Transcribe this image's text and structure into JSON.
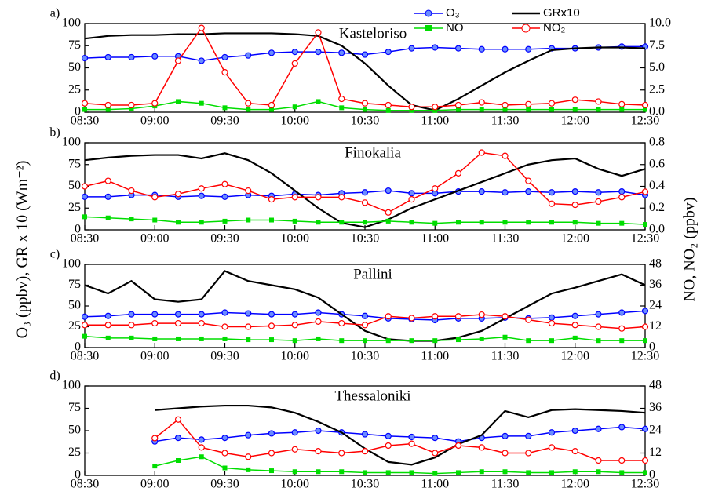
{
  "chart_data": [
    {
      "type": "line",
      "title": "Kasteloriso",
      "panel_label": "a)",
      "ylabel": "O₃ (ppbv), GR x 10 (Wm⁻²)",
      "y2label": "NO, NO₂ (ppbv)",
      "legend": "upper right",
      "x": [
        "08:30",
        "08:40",
        "08:50",
        "09:00",
        "09:10",
        "09:20",
        "09:30",
        "09:40",
        "09:50",
        "10:00",
        "10:10",
        "10:20",
        "10:30",
        "10:40",
        "10:50",
        "11:00",
        "11:10",
        "11:20",
        "11:30",
        "11:40",
        "11:50",
        "12:00",
        "12:10",
        "12:20",
        "12:30"
      ],
      "xlim": [
        "08:30",
        "12:30"
      ],
      "xticks": [
        "08:30",
        "09:00",
        "09:30",
        "10:00",
        "10:30",
        "11:00",
        "11:30",
        "12:00",
        "12:30"
      ],
      "ylim": [
        0,
        100
      ],
      "yticks": [
        0,
        25,
        50,
        75,
        100
      ],
      "y2lim": [
        0,
        10
      ],
      "y2ticks": [
        {
          "value": 0,
          "label": "0.0"
        },
        2.5,
        {
          "value": 5,
          "label": "5.0"
        },
        7.5,
        {
          "value": 10,
          "label": "10.0"
        }
      ],
      "series": [
        {
          "name": "O₃",
          "color": "#0000ff",
          "marker": "circle",
          "axis": "y",
          "values": [
            61,
            62,
            62,
            63,
            63,
            58,
            62,
            64,
            67,
            68,
            68,
            67,
            65,
            68,
            72,
            73,
            72,
            71,
            71,
            71,
            72,
            72,
            73,
            74,
            74
          ]
        },
        {
          "name": "GRx10",
          "color": "#000000",
          "marker": "none",
          "axis": "y",
          "values": [
            83,
            86,
            87,
            87,
            88,
            88,
            89,
            89,
            89,
            88,
            86,
            75,
            55,
            30,
            8,
            2,
            15,
            30,
            45,
            58,
            70,
            72,
            73,
            73,
            72
          ]
        },
        {
          "name": "NO",
          "color": "#00dd00",
          "marker": "square",
          "axis": "y2",
          "values": [
            0.3,
            0.3,
            0.4,
            0.7,
            1.2,
            1.0,
            0.5,
            0.3,
            0.3,
            0.6,
            1.2,
            0.5,
            0.3,
            0.2,
            0.2,
            0.2,
            0.3,
            0.3,
            0.3,
            0.3,
            0.3,
            0.3,
            0.3,
            0.3,
            0.3
          ]
        },
        {
          "name": "NO₂",
          "color": "#ff0000",
          "marker": "open-circle",
          "axis": "y2",
          "values": [
            1.0,
            0.8,
            0.8,
            1.0,
            5.8,
            9.5,
            4.5,
            1.0,
            0.8,
            5.5,
            9.0,
            1.5,
            1.0,
            0.8,
            0.6,
            0.6,
            0.8,
            1.1,
            0.8,
            0.9,
            1.0,
            1.4,
            1.2,
            0.9,
            0.8
          ]
        }
      ]
    },
    {
      "type": "line",
      "title": "Finokalia",
      "panel_label": "b)",
      "x": [
        "08:30",
        "08:40",
        "08:50",
        "09:00",
        "09:10",
        "09:20",
        "09:30",
        "09:40",
        "09:50",
        "10:00",
        "10:10",
        "10:20",
        "10:30",
        "10:40",
        "10:50",
        "11:00",
        "11:10",
        "11:20",
        "11:30",
        "11:40",
        "11:50",
        "12:00",
        "12:10",
        "12:20",
        "12:30"
      ],
      "xlim": [
        "08:30",
        "12:30"
      ],
      "xticks": [
        "08:30",
        "09:00",
        "09:30",
        "10:00",
        "10:30",
        "11:00",
        "11:30",
        "12:00",
        "12:30"
      ],
      "ylim": [
        0,
        100
      ],
      "yticks": [
        0,
        25,
        50,
        75,
        100
      ],
      "y2lim": [
        0,
        0.8
      ],
      "y2ticks": [
        {
          "value": 0,
          "label": "0.0"
        },
        0.2,
        0.4,
        0.6,
        0.8
      ],
      "series": [
        {
          "color": "#0000ff",
          "marker": "circle",
          "axis": "y",
          "values": [
            38,
            38,
            40,
            40,
            38,
            39,
            38,
            40,
            39,
            41,
            40,
            42,
            43,
            45,
            42,
            42,
            44,
            44,
            43,
            44,
            43,
            44,
            43,
            44,
            40
          ]
        },
        {
          "color": "#000000",
          "marker": "none",
          "axis": "y",
          "values": [
            80,
            83,
            85,
            86,
            86,
            82,
            88,
            80,
            65,
            45,
            25,
            8,
            3,
            12,
            25,
            35,
            45,
            55,
            65,
            75,
            80,
            82,
            70,
            62,
            70
          ]
        },
        {
          "color": "#00dd00",
          "marker": "square",
          "axis": "y2",
          "values": [
            0.12,
            0.11,
            0.1,
            0.09,
            0.07,
            0.07,
            0.08,
            0.09,
            0.09,
            0.08,
            0.07,
            0.07,
            0.07,
            0.08,
            0.07,
            0.06,
            0.07,
            0.07,
            0.07,
            0.07,
            0.07,
            0.07,
            0.06,
            0.06,
            0.05
          ]
        },
        {
          "color": "#ff0000",
          "marker": "open-circle",
          "axis": "y2",
          "values": [
            0.4,
            0.45,
            0.36,
            0.3,
            0.33,
            0.38,
            0.42,
            0.36,
            0.28,
            0.3,
            0.3,
            0.3,
            0.25,
            0.16,
            0.28,
            0.38,
            0.52,
            0.71,
            0.68,
            0.45,
            0.24,
            0.23,
            0.26,
            0.3,
            0.35
          ]
        }
      ]
    },
    {
      "type": "line",
      "title": "Pallini",
      "panel_label": "c)",
      "x": [
        "08:30",
        "08:40",
        "08:50",
        "09:00",
        "09:10",
        "09:20",
        "09:30",
        "09:40",
        "09:50",
        "10:00",
        "10:10",
        "10:20",
        "10:30",
        "10:40",
        "10:50",
        "11:00",
        "11:10",
        "11:20",
        "11:30",
        "11:40",
        "11:50",
        "12:00",
        "12:10",
        "12:20",
        "12:30"
      ],
      "xlim": [
        "08:30",
        "12:30"
      ],
      "xticks": [
        "08:30",
        "09:00",
        "09:30",
        "10:00",
        "10:30",
        "11:00",
        "11:30",
        "12:00",
        "12:30"
      ],
      "ylim": [
        0,
        100
      ],
      "yticks": [
        0,
        25,
        50,
        75,
        100
      ],
      "y2lim": [
        0,
        48
      ],
      "y2ticks": [
        0,
        12,
        24,
        36,
        48
      ],
      "series": [
        {
          "color": "#0000ff",
          "marker": "circle",
          "axis": "y",
          "values": [
            37,
            38,
            40,
            40,
            40,
            40,
            42,
            41,
            40,
            40,
            42,
            40,
            38,
            35,
            34,
            33,
            35,
            35,
            36,
            35,
            36,
            38,
            40,
            42,
            44
          ]
        },
        {
          "color": "#000000",
          "marker": "none",
          "axis": "y",
          "values": [
            75,
            65,
            80,
            58,
            55,
            58,
            92,
            80,
            75,
            70,
            60,
            40,
            20,
            10,
            8,
            8,
            12,
            20,
            35,
            50,
            65,
            72,
            80,
            88,
            75
          ]
        },
        {
          "color": "#00dd00",
          "marker": "square",
          "axis": "y2",
          "values": [
            6.5,
            5.5,
            5.5,
            5,
            5,
            5,
            5,
            4.5,
            4.5,
            4,
            5,
            4,
            4,
            4,
            4,
            4,
            4.5,
            5,
            6,
            4,
            4,
            5.5,
            4,
            4,
            4
          ]
        },
        {
          "color": "#ff0000",
          "marker": "open-circle",
          "axis": "y2",
          "values": [
            13,
            13,
            13,
            14,
            14,
            14,
            12,
            12,
            12.5,
            13,
            15,
            14,
            13,
            18,
            17,
            18,
            18,
            19,
            18,
            16,
            14,
            13,
            12,
            11,
            12
          ]
        }
      ]
    },
    {
      "type": "line",
      "title": "Thessaloniki",
      "panel_label": "d)",
      "x": [
        "08:30",
        "08:40",
        "08:50",
        "09:00",
        "09:10",
        "09:20",
        "09:30",
        "09:40",
        "09:50",
        "10:00",
        "10:10",
        "10:20",
        "10:30",
        "10:40",
        "10:50",
        "11:00",
        "11:10",
        "11:20",
        "11:30",
        "11:40",
        "11:50",
        "12:00",
        "12:10",
        "12:20",
        "12:30"
      ],
      "xlim": [
        "08:30",
        "12:30"
      ],
      "xticks": [
        "08:30",
        "09:00",
        "09:30",
        "10:00",
        "10:30",
        "11:00",
        "11:30",
        "12:00",
        "12:30"
      ],
      "ylim": [
        0,
        100
      ],
      "yticks": [
        0,
        25,
        50,
        75,
        100
      ],
      "y2lim": [
        0,
        48
      ],
      "y2ticks": [
        0,
        12,
        24,
        36,
        48
      ],
      "series": [
        {
          "color": "#0000ff",
          "marker": "circle",
          "axis": "y",
          "values": [
            null,
            null,
            null,
            38,
            42,
            40,
            42,
            45,
            47,
            48,
            50,
            48,
            46,
            44,
            43,
            42,
            38,
            42,
            44,
            44,
            48,
            50,
            52,
            54,
            52
          ]
        },
        {
          "color": "#000000",
          "marker": "none",
          "axis": "y",
          "values": [
            null,
            null,
            null,
            73,
            75,
            77,
            78,
            78,
            76,
            70,
            60,
            48,
            30,
            15,
            12,
            20,
            35,
            45,
            72,
            65,
            73,
            74,
            73,
            72,
            70
          ]
        },
        {
          "color": "#00dd00",
          "marker": "square",
          "axis": "y2",
          "values": [
            null,
            null,
            null,
            5,
            8,
            10,
            4,
            3,
            2.5,
            2,
            2,
            2,
            1.5,
            1.5,
            1.5,
            1,
            1.5,
            2,
            2,
            1.5,
            1.5,
            2,
            2,
            1.5,
            1.5
          ]
        },
        {
          "color": "#ff0000",
          "marker": "open-circle",
          "axis": "y2",
          "values": [
            null,
            null,
            null,
            20,
            30,
            15,
            12,
            10,
            12,
            14,
            13,
            12,
            13,
            16,
            17,
            12,
            16,
            15,
            12,
            12,
            15,
            13,
            8,
            8,
            8
          ]
        }
      ]
    }
  ]
}
